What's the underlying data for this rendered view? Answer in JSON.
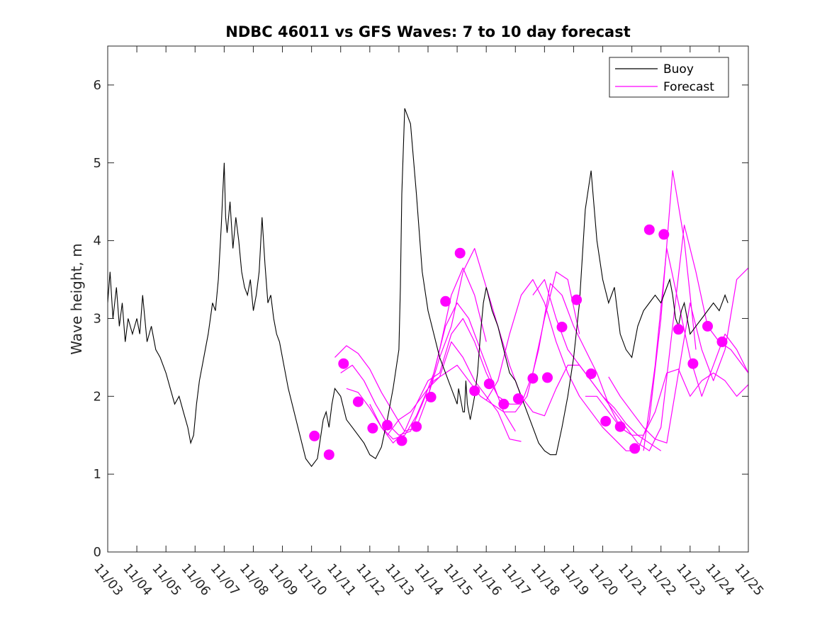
{
  "chart_data": {
    "type": "line",
    "title": "NDBC 46011 vs GFS Waves: 7 to 10 day forecast",
    "xlabel": "",
    "ylabel": "Wave height, m",
    "xlim": [
      0,
      22
    ],
    "ylim": [
      0,
      6.5
    ],
    "x_tick_labels": [
      "11/03",
      "11/04",
      "11/05",
      "11/06",
      "11/07",
      "11/08",
      "11/09",
      "11/10",
      "11/11",
      "11/12",
      "11/13",
      "11/14",
      "11/15",
      "11/16",
      "11/17",
      "11/18",
      "11/19",
      "11/20",
      "11/21",
      "11/22",
      "11/23",
      "11/24",
      "11/25"
    ],
    "y_ticks": [
      0,
      1,
      2,
      3,
      4,
      5,
      6
    ],
    "y_tick_labels": [
      "0",
      "1",
      "2",
      "3",
      "4",
      "5",
      "6"
    ],
    "legend": {
      "position": "top-right",
      "entries": [
        "Buoy",
        "Forecast"
      ]
    },
    "colors": {
      "buoy": "#000000",
      "forecast": "#ff00ff"
    },
    "buoy": {
      "name": "Buoy",
      "x": [
        0,
        0.08,
        0.18,
        0.3,
        0.4,
        0.5,
        0.6,
        0.7,
        0.85,
        1.0,
        1.1,
        1.2,
        1.35,
        1.5,
        1.65,
        1.8,
        2.0,
        2.15,
        2.3,
        2.45,
        2.6,
        2.75,
        2.85,
        2.95,
        3.05,
        3.15,
        3.3,
        3.45,
        3.6,
        3.7,
        3.8,
        3.9,
        3.95,
        4.0,
        4.05,
        4.1,
        4.2,
        4.3,
        4.4,
        4.5,
        4.6,
        4.7,
        4.8,
        4.9,
        5.0,
        5.1,
        5.2,
        5.3,
        5.4,
        5.5,
        5.6,
        5.7,
        5.8,
        5.9,
        6.0,
        6.2,
        6.4,
        6.6,
        6.8,
        7.0,
        7.2,
        7.4,
        7.5,
        7.6,
        7.7,
        7.8,
        8.0,
        8.2,
        8.4,
        8.6,
        8.8,
        9.0,
        9.2,
        9.4,
        9.6,
        9.8,
        10.0,
        10.05,
        10.1,
        10.2,
        10.4,
        10.6,
        10.8,
        11.0,
        11.2,
        11.4,
        11.6,
        11.8,
        11.9,
        12.0,
        12.05,
        12.1,
        12.15,
        12.2,
        12.25,
        12.3,
        12.35,
        12.4,
        12.45,
        12.5,
        12.55,
        12.6,
        12.7,
        12.8,
        12.9,
        13.0,
        13.2,
        13.4,
        13.6,
        13.8,
        14.0,
        14.2,
        14.4,
        14.6,
        14.8,
        15.0,
        15.2,
        15.4,
        15.6,
        15.8,
        16.0,
        16.2,
        16.4,
        16.6,
        16.8,
        17.0,
        17.2,
        17.4,
        17.6,
        17.8,
        18.0,
        18.2,
        18.4,
        18.6,
        18.8,
        19.0,
        19.2,
        19.3,
        19.4,
        19.5,
        19.6,
        19.7,
        19.8,
        19.9,
        20.0,
        20.2,
        20.4,
        20.6,
        20.8,
        21.0,
        21.2,
        21.3
      ],
      "values": [
        3.2,
        3.6,
        3.0,
        3.4,
        2.9,
        3.2,
        2.7,
        3.0,
        2.8,
        3.0,
        2.8,
        3.3,
        2.7,
        2.9,
        2.6,
        2.5,
        2.3,
        2.1,
        1.9,
        2.0,
        1.8,
        1.6,
        1.4,
        1.5,
        1.9,
        2.2,
        2.5,
        2.8,
        3.2,
        3.1,
        3.5,
        4.2,
        4.6,
        5.0,
        4.3,
        4.1,
        4.5,
        3.9,
        4.3,
        4.0,
        3.6,
        3.4,
        3.3,
        3.5,
        3.1,
        3.3,
        3.6,
        4.3,
        3.7,
        3.2,
        3.3,
        3.0,
        2.8,
        2.7,
        2.5,
        2.1,
        1.8,
        1.5,
        1.2,
        1.1,
        1.2,
        1.7,
        1.8,
        1.6,
        1.9,
        2.1,
        2.0,
        1.7,
        1.6,
        1.5,
        1.4,
        1.25,
        1.2,
        1.35,
        1.7,
        2.1,
        2.6,
        3.4,
        4.6,
        5.7,
        5.5,
        4.6,
        3.6,
        3.1,
        2.8,
        2.5,
        2.3,
        2.1,
        2.0,
        1.9,
        2.1,
        2.0,
        1.9,
        1.8,
        1.8,
        2.2,
        1.9,
        1.8,
        1.7,
        1.8,
        1.9,
        2.0,
        2.3,
        2.8,
        3.2,
        3.4,
        3.1,
        2.9,
        2.6,
        2.3,
        2.2,
        2.0,
        1.8,
        1.6,
        1.4,
        1.3,
        1.25,
        1.25,
        1.6,
        2.0,
        2.5,
        3.2,
        4.4,
        4.9,
        4.0,
        3.5,
        3.2,
        3.4,
        2.8,
        2.6,
        2.5,
        2.9,
        3.1,
        3.2,
        3.3,
        3.2,
        3.4,
        3.5,
        3.3,
        3.0,
        2.9,
        3.1,
        3.2,
        3.0,
        2.8,
        2.9,
        3.0,
        3.1,
        3.2,
        3.1,
        3.3,
        3.2
      ]
    },
    "forecast_series": [
      {
        "name": "Forecast",
        "x": [
          7.8,
          8.2,
          8.6,
          9.0,
          9.4,
          9.8,
          10.2,
          10.6,
          11.0,
          11.4,
          11.8,
          12.2,
          12.6,
          13.0
        ],
        "values": [
          2.5,
          2.65,
          2.55,
          2.35,
          2.05,
          1.8,
          1.55,
          1.6,
          2.0,
          2.6,
          3.3,
          3.65,
          3.3,
          2.7
        ]
      },
      {
        "name": "Forecast",
        "x": [
          8.0,
          8.4,
          8.8,
          9.2,
          9.6,
          10.0,
          10.4,
          10.8,
          11.2,
          11.6,
          12.0,
          12.4,
          12.8,
          13.2,
          13.6,
          14.0
        ],
        "values": [
          2.3,
          2.4,
          2.2,
          1.9,
          1.65,
          1.5,
          1.55,
          1.9,
          2.3,
          2.9,
          3.2,
          3.0,
          2.6,
          2.2,
          1.8,
          1.55
        ]
      },
      {
        "name": "Forecast",
        "x": [
          8.2,
          8.6,
          9.0,
          9.4,
          9.8,
          10.2,
          10.6,
          11.0,
          11.4,
          11.8,
          12.2,
          12.6,
          13.0,
          13.4,
          13.8,
          14.2
        ],
        "values": [
          2.1,
          2.05,
          1.85,
          1.6,
          1.45,
          1.5,
          1.75,
          2.1,
          2.25,
          2.7,
          2.5,
          2.2,
          2.0,
          1.8,
          1.45,
          1.42
        ]
      },
      {
        "name": "Forecast",
        "x": [
          9.0,
          9.4,
          9.8,
          10.2,
          10.6,
          11.0,
          11.4,
          11.8,
          12.2,
          12.6,
          13.0,
          13.4,
          13.8,
          14.2,
          14.6,
          15.0,
          15.4,
          15.8,
          16.2
        ],
        "values": [
          1.9,
          1.6,
          1.4,
          1.55,
          1.9,
          2.2,
          2.3,
          2.8,
          3.0,
          2.7,
          2.3,
          2.0,
          1.9,
          1.9,
          2.3,
          3.0,
          3.6,
          3.5,
          2.8
        ]
      },
      {
        "name": "Forecast",
        "x": [
          9.6,
          10.0,
          10.4,
          10.8,
          11.2,
          11.6,
          12.0,
          12.4,
          12.8,
          13.2,
          13.6,
          14.0,
          14.4,
          14.8,
          15.2,
          15.6,
          16.0,
          16.4,
          16.8,
          17.2,
          17.6
        ],
        "values": [
          1.5,
          1.7,
          1.8,
          2.0,
          2.2,
          2.3,
          2.4,
          2.2,
          2.0,
          1.9,
          1.8,
          1.8,
          2.0,
          2.6,
          3.45,
          3.3,
          2.9,
          2.6,
          2.3,
          1.9,
          1.6
        ]
      },
      {
        "name": "Forecast",
        "x": [
          11.0,
          11.4,
          11.8,
          12.2,
          12.6,
          13.0,
          13.4,
          13.8,
          14.2,
          14.6,
          15.0,
          15.4,
          15.8,
          16.2,
          16.6,
          17.0,
          17.4,
          17.8,
          18.2,
          18.6,
          19.0
        ],
        "values": [
          2.0,
          2.5,
          2.9,
          3.6,
          3.9,
          3.4,
          2.9,
          2.4,
          2.0,
          1.8,
          1.75,
          2.1,
          2.4,
          2.4,
          2.2,
          2.0,
          1.85,
          1.65,
          1.5,
          1.4,
          1.3
        ]
      },
      {
        "name": "Forecast",
        "x": [
          13.0,
          13.4,
          13.8,
          14.2,
          14.6,
          15.0,
          15.4,
          15.8,
          16.2,
          16.6,
          17.0,
          17.4,
          17.8,
          18.2,
          18.6,
          19.0,
          19.4,
          19.8,
          20.2
        ],
        "values": [
          1.95,
          2.2,
          2.8,
          3.3,
          3.5,
          3.2,
          2.7,
          2.3,
          2.0,
          1.8,
          1.6,
          1.45,
          1.3,
          1.3,
          1.7,
          3.0,
          4.9,
          4.0,
          2.6
        ]
      },
      {
        "name": "Forecast",
        "x": [
          14.6,
          15.0,
          15.4,
          15.8,
          16.2,
          16.6,
          17.0,
          17.4,
          17.8,
          18.2,
          18.6,
          19.0,
          19.4,
          19.8,
          20.2,
          20.6,
          21.0,
          21.4,
          21.8,
          22.0
        ],
        "values": [
          3.3,
          3.5,
          3.0,
          2.6,
          2.4,
          2.2,
          2.0,
          1.8,
          1.6,
          1.4,
          1.3,
          1.6,
          2.9,
          4.2,
          3.6,
          2.9,
          2.7,
          2.6,
          2.4,
          2.3
        ]
      },
      {
        "name": "Forecast",
        "x": [
          16.4,
          16.8,
          17.2,
          17.6,
          18.0,
          18.4,
          18.8,
          19.2,
          19.6,
          20.0,
          20.4,
          20.8,
          21.2,
          21.6,
          22.0
        ],
        "values": [
          2.0,
          2.0,
          1.8,
          1.6,
          1.5,
          1.5,
          1.8,
          2.3,
          2.35,
          2.0,
          2.2,
          2.3,
          2.2,
          2.0,
          2.15
        ]
      },
      {
        "name": "Forecast",
        "x": [
          17.2,
          17.6,
          18.0,
          18.4,
          18.8,
          19.2,
          19.6,
          20.0,
          20.4,
          20.8,
          21.2,
          21.6,
          22.0
        ],
        "values": [
          2.25,
          2.0,
          1.8,
          1.6,
          1.45,
          1.4,
          2.3,
          3.2,
          2.6,
          2.2,
          2.6,
          3.5,
          3.65
        ]
      },
      {
        "name": "Forecast",
        "x": [
          18.4,
          18.8,
          19.2,
          19.6,
          20.0,
          20.4,
          20.8,
          21.2,
          21.6,
          22.0
        ],
        "values": [
          1.3,
          2.4,
          3.9,
          3.2,
          2.5,
          2.0,
          2.4,
          2.8,
          2.6,
          2.3
        ]
      }
    ],
    "forecast_markers": {
      "x": [
        7.1,
        7.6,
        8.1,
        8.6,
        9.1,
        9.6,
        10.1,
        10.6,
        11.1,
        11.6,
        12.1,
        12.6,
        13.1,
        13.6,
        14.1,
        14.6,
        15.1,
        15.6,
        16.1,
        16.6,
        17.1,
        17.6,
        18.1,
        18.6,
        19.1,
        19.6,
        20.1,
        20.6,
        21.1
      ],
      "values": [
        1.49,
        1.25,
        2.42,
        1.93,
        1.59,
        1.63,
        1.43,
        1.61,
        1.99,
        3.22,
        3.84,
        2.07,
        2.16,
        1.9,
        1.97,
        2.23,
        2.24,
        2.89,
        3.24,
        2.29,
        1.68,
        1.61,
        1.33,
        4.14,
        4.08,
        2.86,
        2.42,
        2.9,
        2.7
      ]
    }
  }
}
